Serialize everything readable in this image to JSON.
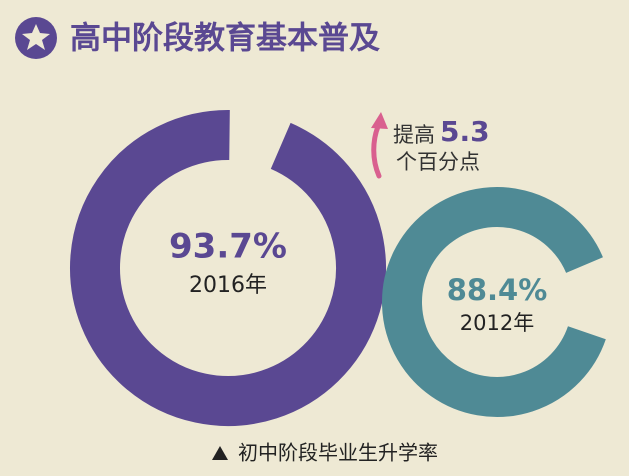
{
  "chart_data": {
    "type": "donut",
    "title": "高中阶段教育基本普及",
    "categories": [
      "2016年",
      "2012年"
    ],
    "values": [
      93.7,
      88.4
    ],
    "value_labels": [
      "93.7%",
      "88.4%"
    ],
    "colors": [
      "#5a4892",
      "#4f8a95"
    ],
    "annotation": {
      "prefix": "提高",
      "value": 5.3,
      "suffix": "个百分点"
    },
    "caption": "初中阶段毕业生升学率"
  }
}
